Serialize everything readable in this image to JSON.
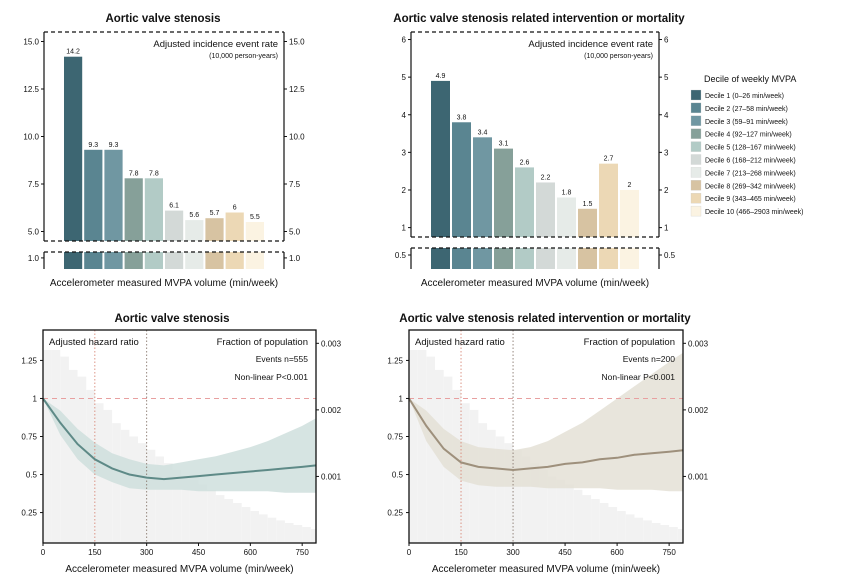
{
  "figure": {
    "legend": {
      "title": "Decile of weekly MVPA",
      "items": [
        "Decile 1 (0–26 min/week)",
        "Decile 2 (27–58 min/week)",
        "Decile 3 (59–91 min/week)",
        "Decile 4 (92–127 min/week)",
        "Decile 5 (128–167 min/week)",
        "Decile 6 (168–212 min/week)",
        "Decile 7 (213–268 min/week)",
        "Decile 8 (269–342 min/week)",
        "Decile 9 (343–465 min/week)",
        "Decile 10 (466–2903 min/week)"
      ],
      "colors": [
        "#3d6672",
        "#5a8591",
        "#7097a2",
        "#86a099",
        "#b2cbc6",
        "#d3d9d7",
        "#e6ebe8",
        "#d7c3a2",
        "#ecd8b5",
        "#fbf3e2"
      ]
    }
  },
  "chart_data": [
    {
      "type": "bar",
      "title": "Aortic valve stenosis",
      "xlabel": "Accelerometer measured MVPA volume (min/week)",
      "ylabel": "Adjusted incidence event rate",
      "ylabel_sub": "(10,000 person-years)",
      "categories": [
        "Decile 1",
        "Decile 2",
        "Decile 3",
        "Decile 4",
        "Decile 5",
        "Decile 6",
        "Decile 7",
        "Decile 8",
        "Decile 9",
        "Decile 10"
      ],
      "values": [
        14.2,
        9.3,
        9.3,
        7.8,
        7.8,
        6.1,
        5.6,
        5.7,
        6,
        5.5
      ],
      "value_labels": [
        "14.2",
        "9.3",
        "9.3",
        "7.8",
        "7.8",
        "6.1",
        "5.6",
        "5.7",
        "6",
        "5.5"
      ],
      "ylim_upper": [
        4.5,
        15.5
      ],
      "yticks_upper": [
        "5.0",
        "7.5",
        "10.0",
        "12.5",
        "15.0"
      ],
      "yticks_lower": [
        "1.0"
      ],
      "axis_break": true
    },
    {
      "type": "bar",
      "title": "Aortic valve stenosis related intervention or mortality",
      "xlabel": "Accelerometer measured MVPA volume (min/week)",
      "ylabel": "Adjusted incidence event rate",
      "ylabel_sub": "(10,000 person-years)",
      "categories": [
        "Decile 1",
        "Decile 2",
        "Decile 3",
        "Decile 4",
        "Decile 5",
        "Decile 6",
        "Decile 7",
        "Decile 8",
        "Decile 9",
        "Decile 10"
      ],
      "values": [
        4.9,
        3.8,
        3.4,
        3.1,
        2.6,
        2.2,
        1.8,
        1.5,
        2.7,
        2
      ],
      "value_labels": [
        "4.9",
        "3.8",
        "3.4",
        "3.1",
        "2.6",
        "2.2",
        "1.8",
        "1.5",
        "2.7",
        "2"
      ],
      "ylim_upper": [
        0.75,
        6.2
      ],
      "yticks_upper": [
        "1",
        "2",
        "3",
        "4",
        "5",
        "6"
      ],
      "yticks_lower": [
        "0.5"
      ],
      "axis_break": true
    },
    {
      "type": "line",
      "title": "Aortic valve stenosis",
      "xlabel": "Accelerometer measured MVPA volume (min/week)",
      "ylabel": "Adjusted hazard ratio",
      "ylabel_right": "Fraction of population",
      "annotations": [
        "Events n=555",
        "Non-linear P<0.001"
      ],
      "xlim": [
        0,
        790
      ],
      "ylim": [
        0.05,
        1.45
      ],
      "xticks": [
        "0",
        "150",
        "300",
        "450",
        "600",
        "750"
      ],
      "yticks": [
        "0.25",
        "0.5",
        "0.75",
        "1",
        "1.25"
      ],
      "yticks_right": [
        "0.001",
        "0.002",
        "0.003"
      ],
      "reference_lines": {
        "y": 1,
        "x": [
          150,
          300
        ]
      },
      "line_color": "#5e8a87",
      "band_color": "#cfdfdd",
      "series": [
        {
          "x": [
            0,
            50,
            100,
            150,
            200,
            250,
            300,
            350,
            400,
            450,
            500,
            550,
            600,
            650,
            700,
            750,
            790
          ],
          "y": [
            1.0,
            0.84,
            0.7,
            0.6,
            0.54,
            0.5,
            0.48,
            0.47,
            0.48,
            0.49,
            0.5,
            0.51,
            0.52,
            0.53,
            0.54,
            0.55,
            0.56
          ],
          "lower": [
            1.0,
            0.76,
            0.6,
            0.5,
            0.45,
            0.41,
            0.4,
            0.4,
            0.4,
            0.39,
            0.39,
            0.39,
            0.39,
            0.39,
            0.38,
            0.38,
            0.38
          ],
          "upper": [
            1.0,
            0.92,
            0.8,
            0.71,
            0.64,
            0.6,
            0.57,
            0.56,
            0.58,
            0.6,
            0.62,
            0.65,
            0.68,
            0.72,
            0.77,
            0.82,
            0.87
          ]
        }
      ],
      "population_histogram": {
        "bin_width": 25,
        "fractions": [
          0.0029,
          0.0029,
          0.0028,
          0.0026,
          0.0025,
          0.0023,
          0.0021,
          0.002,
          0.0018,
          0.0017,
          0.0016,
          0.0015,
          0.0014,
          0.0013,
          0.0012,
          0.0011,
          0.001,
          0.00095,
          0.00088,
          0.0008,
          0.00072,
          0.00066,
          0.0006,
          0.00054,
          0.00048,
          0.00043,
          0.00038,
          0.00034,
          0.0003,
          0.00027,
          0.00024,
          0.00021
        ],
        "ylim_right": [
          0.0,
          0.0032
        ]
      }
    },
    {
      "type": "line",
      "title": "Aortic valve stenosis related intervention or mortality",
      "xlabel": "Accelerometer measured MVPA volume (min/week)",
      "ylabel": "Adjusted hazard ratio",
      "ylabel_right": "Fraction of population",
      "annotations": [
        "Events n=200",
        "Non-linear P<0.001"
      ],
      "xlim": [
        0,
        790
      ],
      "ylim": [
        0.05,
        1.45
      ],
      "xticks": [
        "0",
        "150",
        "300",
        "450",
        "600",
        "750"
      ],
      "yticks": [
        "0.25",
        "0.5",
        "0.75",
        "1",
        "1.25"
      ],
      "yticks_right": [
        "0.001",
        "0.002",
        "0.003"
      ],
      "reference_lines": {
        "y": 1,
        "x": [
          150,
          300
        ]
      },
      "line_color": "#9e907c",
      "band_color": "#e4e0d6",
      "series": [
        {
          "x": [
            0,
            50,
            100,
            150,
            200,
            250,
            300,
            350,
            400,
            450,
            500,
            550,
            600,
            650,
            700,
            750,
            790
          ],
          "y": [
            1.0,
            0.82,
            0.67,
            0.58,
            0.55,
            0.54,
            0.53,
            0.54,
            0.55,
            0.57,
            0.58,
            0.6,
            0.61,
            0.63,
            0.64,
            0.65,
            0.66
          ],
          "lower": [
            1.0,
            0.72,
            0.55,
            0.46,
            0.43,
            0.42,
            0.42,
            0.42,
            0.41,
            0.41,
            0.41,
            0.41,
            0.4,
            0.4,
            0.4,
            0.39,
            0.39
          ],
          "upper": [
            1.0,
            0.92,
            0.8,
            0.72,
            0.68,
            0.67,
            0.66,
            0.68,
            0.72,
            0.78,
            0.84,
            0.92,
            1.0,
            1.08,
            1.16,
            1.24,
            1.3
          ]
        }
      ],
      "population_histogram": {
        "bin_width": 25,
        "fractions": [
          0.0029,
          0.0029,
          0.0028,
          0.0026,
          0.0025,
          0.0023,
          0.0021,
          0.002,
          0.0018,
          0.0017,
          0.0016,
          0.0015,
          0.0014,
          0.0013,
          0.0012,
          0.0011,
          0.001,
          0.00095,
          0.00088,
          0.0008,
          0.00072,
          0.00066,
          0.0006,
          0.00054,
          0.00048,
          0.00043,
          0.00038,
          0.00034,
          0.0003,
          0.00027,
          0.00024,
          0.00021
        ],
        "ylim_right": [
          0.0,
          0.0032
        ]
      }
    }
  ]
}
